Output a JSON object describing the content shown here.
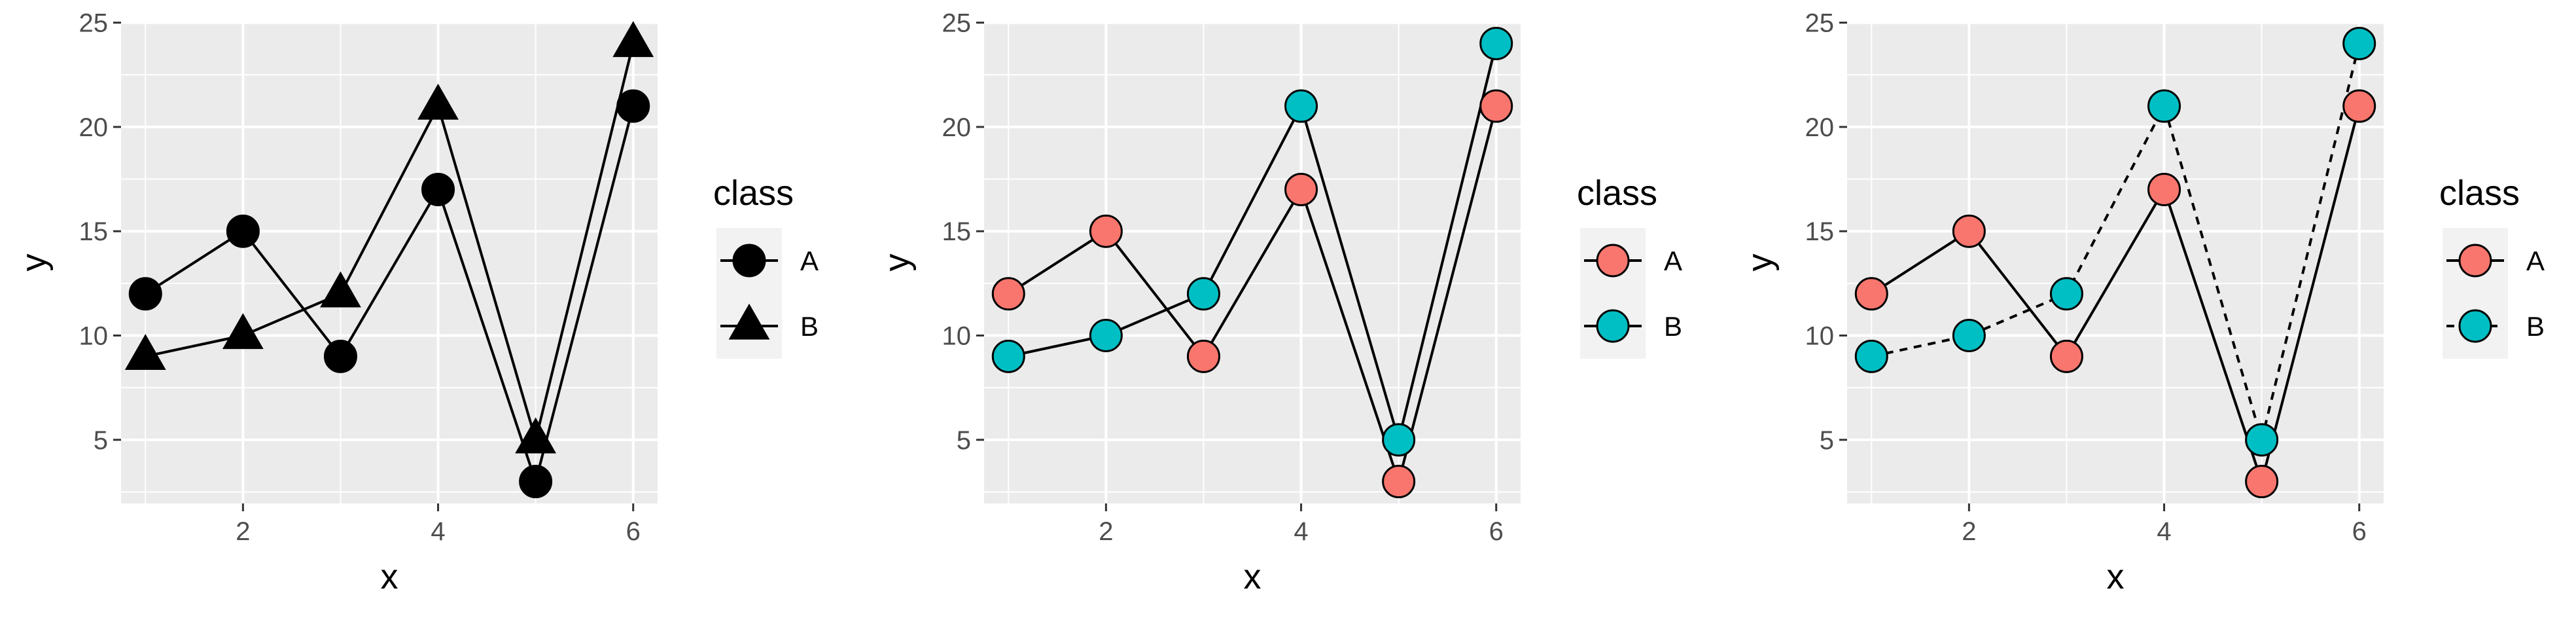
{
  "chart_data": [
    {
      "type": "line",
      "x": [
        1,
        2,
        3,
        4,
        5,
        6
      ],
      "series": [
        {
          "name": "A",
          "values": [
            12,
            15,
            9,
            17,
            3,
            21
          ],
          "shape": "circle",
          "fill": "#000000",
          "linetype": "solid"
        },
        {
          "name": "B",
          "values": [
            9,
            10,
            12,
            21,
            5,
            24
          ],
          "shape": "triangle",
          "fill": "#000000",
          "linetype": "solid"
        }
      ],
      "xlabel": "x",
      "ylabel": "y",
      "legend_title": "class",
      "legend_position": "right",
      "xlim": [
        0.75,
        6.25
      ],
      "ylim": [
        1.95,
        25.05
      ],
      "x_ticks": [
        2,
        4,
        6
      ],
      "x_tick_labels": [
        "2",
        "4",
        "6"
      ],
      "y_ticks": [
        5,
        10,
        15,
        20,
        25
      ],
      "y_tick_labels": [
        "5",
        "10",
        "15",
        "20",
        "25"
      ],
      "grid": true,
      "panel_background": "#ebebeb"
    },
    {
      "type": "line",
      "x": [
        1,
        2,
        3,
        4,
        5,
        6
      ],
      "series": [
        {
          "name": "A",
          "values": [
            12,
            15,
            9,
            17,
            3,
            21
          ],
          "shape": "circle",
          "fill": "#f8766d",
          "linetype": "solid"
        },
        {
          "name": "B",
          "values": [
            9,
            10,
            12,
            21,
            5,
            24
          ],
          "shape": "circle",
          "fill": "#00bfc4",
          "linetype": "solid"
        }
      ],
      "xlabel": "x",
      "ylabel": "y",
      "legend_title": "class",
      "legend_position": "right",
      "xlim": [
        0.75,
        6.25
      ],
      "ylim": [
        1.95,
        25.05
      ],
      "x_ticks": [
        2,
        4,
        6
      ],
      "x_tick_labels": [
        "2",
        "4",
        "6"
      ],
      "y_ticks": [
        5,
        10,
        15,
        20,
        25
      ],
      "y_tick_labels": [
        "5",
        "10",
        "15",
        "20",
        "25"
      ],
      "grid": true,
      "panel_background": "#ebebeb"
    },
    {
      "type": "line",
      "x": [
        1,
        2,
        3,
        4,
        5,
        6
      ],
      "series": [
        {
          "name": "A",
          "values": [
            12,
            15,
            9,
            17,
            3,
            21
          ],
          "shape": "circle",
          "fill": "#f8766d",
          "linetype": "solid"
        },
        {
          "name": "B",
          "values": [
            9,
            10,
            12,
            21,
            5,
            24
          ],
          "shape": "circle",
          "fill": "#00bfc4",
          "linetype": "dotted"
        }
      ],
      "xlabel": "x",
      "ylabel": "y",
      "legend_title": "class",
      "legend_position": "right",
      "xlim": [
        0.75,
        6.25
      ],
      "ylim": [
        1.95,
        25.05
      ],
      "x_ticks": [
        2,
        4,
        6
      ],
      "x_tick_labels": [
        "2",
        "4",
        "6"
      ],
      "y_ticks": [
        5,
        10,
        15,
        20,
        25
      ],
      "y_tick_labels": [
        "5",
        "10",
        "15",
        "20",
        "25"
      ],
      "grid": true,
      "panel_background": "#ebebeb"
    }
  ]
}
